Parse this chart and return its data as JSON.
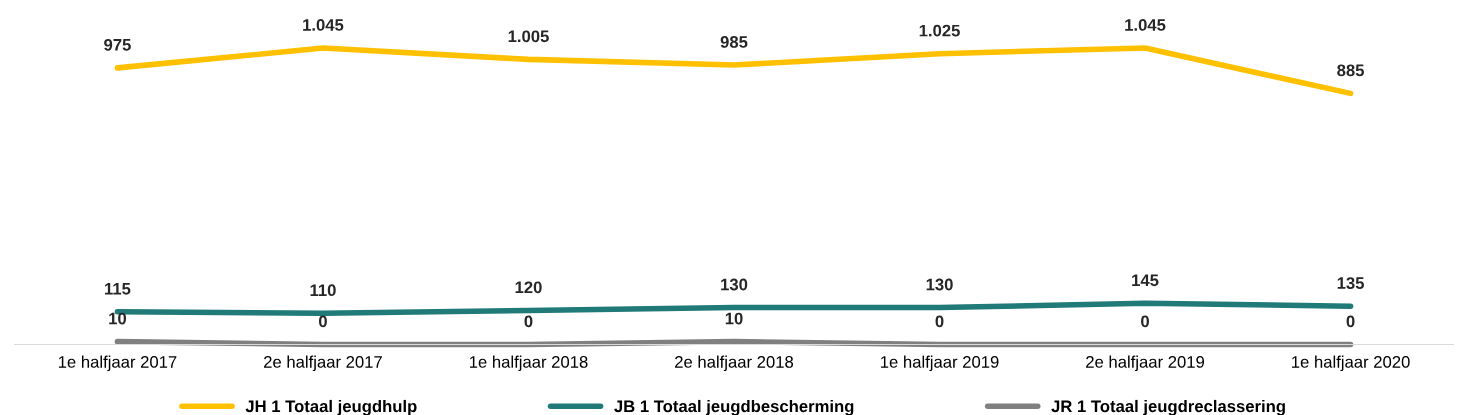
{
  "chart_data": {
    "type": "line",
    "categories": [
      "1e halfjaar 2017",
      "2e halfjaar 2017",
      "1e halfjaar 2018",
      "2e halfjaar 2018",
      "1e halfjaar 2019",
      "2e halfjaar 2019",
      "1e halfjaar 2020"
    ],
    "series": [
      {
        "name": "JH 1 Totaal jeugdhulp",
        "color": "#ffc000",
        "values": [
          975,
          1045,
          1005,
          985,
          1025,
          1045,
          885
        ],
        "value_labels": [
          "975",
          "1.045",
          "1.005",
          "985",
          "1.025",
          "1.045",
          "885"
        ]
      },
      {
        "name": "JB 1 Totaal jeugdbescherming",
        "color": "#1f7a78",
        "values": [
          115,
          110,
          120,
          130,
          130,
          145,
          135
        ],
        "value_labels": [
          "115",
          "110",
          "120",
          "130",
          "130",
          "145",
          "135"
        ]
      },
      {
        "name": "JR 1 Totaal jeugdreclassering",
        "color": "#808080",
        "values": [
          10,
          0,
          0,
          10,
          0,
          0,
          0
        ],
        "value_labels": [
          "10",
          "0",
          "0",
          "10",
          "0",
          "0",
          "0"
        ]
      }
    ],
    "tick_labels": "x",
    "grid": false,
    "legend": "bottom",
    "marker": "none",
    "line_style": "solid"
  }
}
